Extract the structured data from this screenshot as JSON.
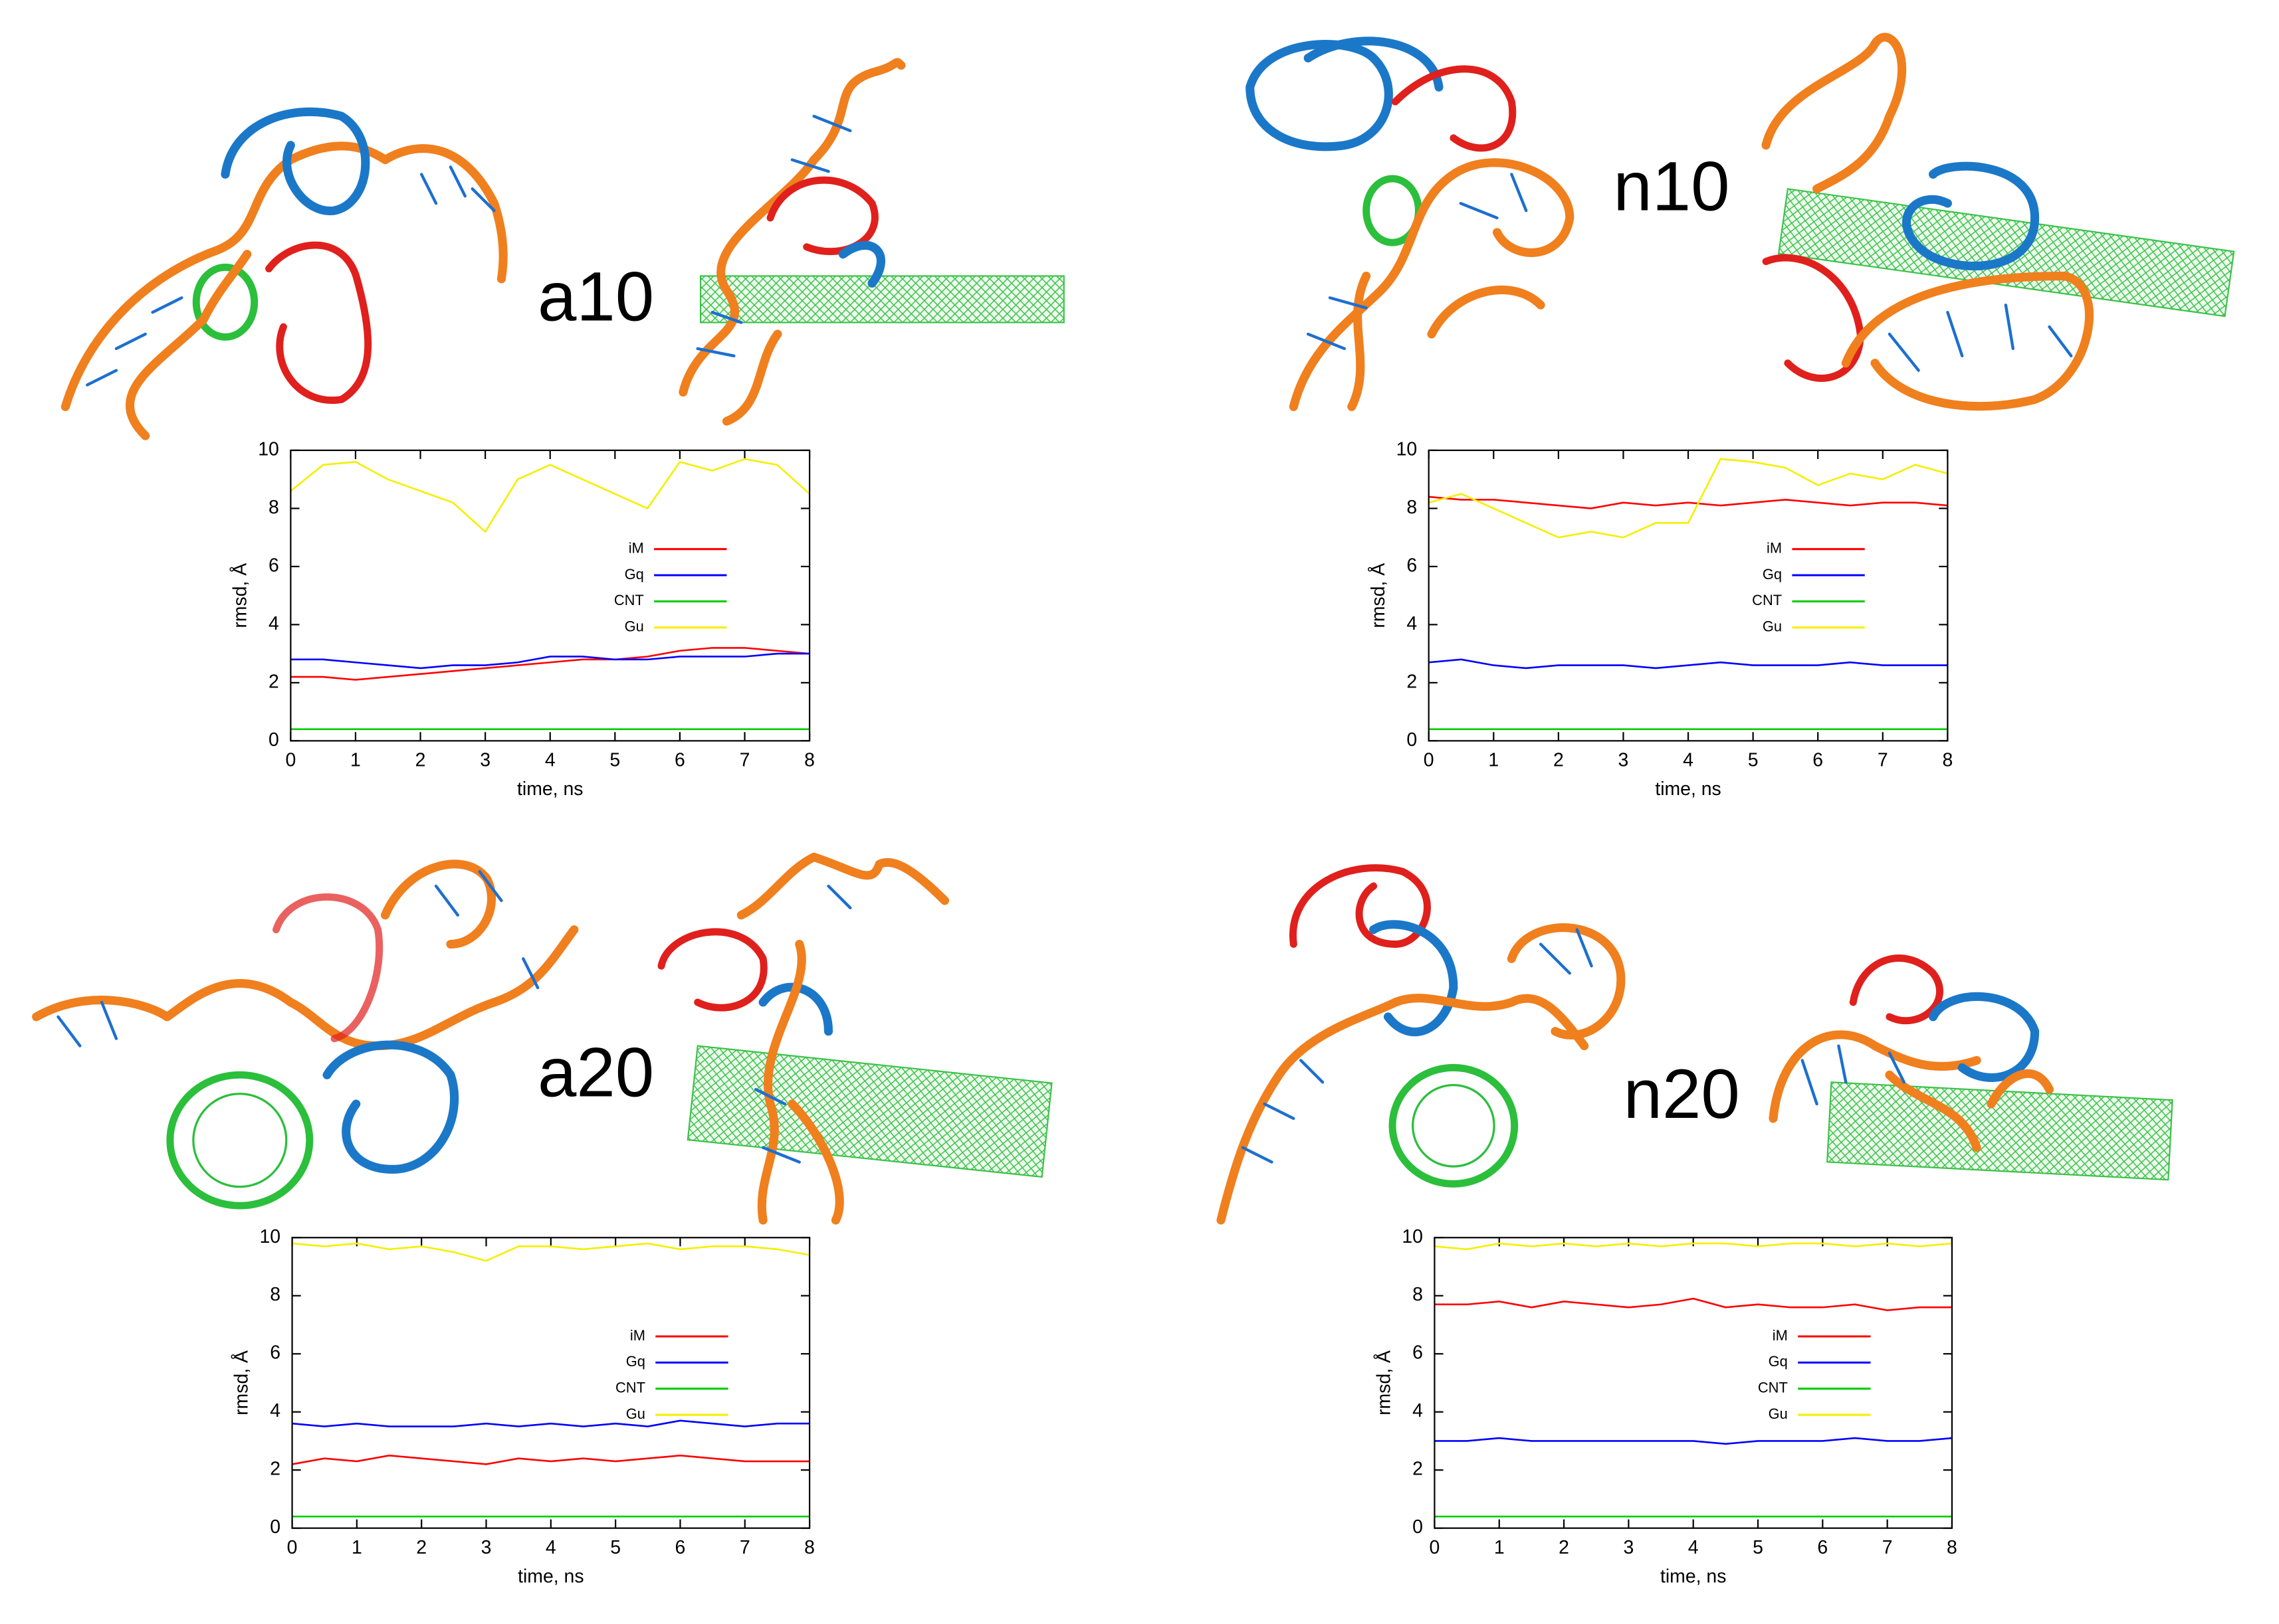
{
  "chart_data": [
    {
      "type": "line",
      "label": "a10",
      "xlabel": "time, ns",
      "ylabel": "rmsd, Å",
      "xlim": [
        0,
        8
      ],
      "ylim": [
        0,
        10
      ],
      "xticks": [
        0,
        1,
        2,
        3,
        4,
        5,
        6,
        7,
        8
      ],
      "yticks": [
        0,
        2,
        4,
        6,
        8,
        10
      ],
      "x": [
        0,
        0.5,
        1,
        1.5,
        2,
        2.5,
        3,
        3.5,
        4,
        4.5,
        5,
        5.5,
        6,
        6.5,
        7,
        7.5,
        8
      ],
      "series": [
        {
          "name": "iM",
          "color": "#ff0000",
          "values": [
            2.2,
            2.2,
            2.1,
            2.2,
            2.3,
            2.4,
            2.5,
            2.6,
            2.7,
            2.8,
            2.8,
            2.9,
            3.1,
            3.2,
            3.2,
            3.1,
            3.0
          ]
        },
        {
          "name": "Gq",
          "color": "#0000ff",
          "values": [
            2.8,
            2.8,
            2.7,
            2.6,
            2.5,
            2.6,
            2.6,
            2.7,
            2.9,
            2.9,
            2.8,
            2.8,
            2.9,
            2.9,
            2.9,
            3.0,
            3.0
          ]
        },
        {
          "name": "CNT",
          "color": "#00cc00",
          "values": [
            0.4,
            0.4,
            0.4,
            0.4,
            0.4,
            0.4,
            0.4,
            0.4,
            0.4,
            0.4,
            0.4,
            0.4,
            0.4,
            0.4,
            0.4,
            0.4,
            0.4
          ]
        },
        {
          "name": "Gu",
          "color": "#f5ef00",
          "values": [
            8.6,
            9.5,
            9.6,
            9.0,
            8.6,
            8.2,
            7.2,
            9.0,
            9.5,
            9.0,
            8.5,
            8.0,
            9.6,
            9.3,
            9.7,
            9.5,
            8.5
          ]
        }
      ]
    },
    {
      "type": "line",
      "label": "n10",
      "xlabel": "time, ns",
      "ylabel": "rmsd, Å",
      "xlim": [
        0,
        8
      ],
      "ylim": [
        0,
        10
      ],
      "xticks": [
        0,
        1,
        2,
        3,
        4,
        5,
        6,
        7,
        8
      ],
      "yticks": [
        0,
        2,
        4,
        6,
        8,
        10
      ],
      "x": [
        0,
        0.5,
        1,
        1.5,
        2,
        2.5,
        3,
        3.5,
        4,
        4.5,
        5,
        5.5,
        6,
        6.5,
        7,
        7.5,
        8
      ],
      "series": [
        {
          "name": "iM",
          "color": "#ff0000",
          "values": [
            8.4,
            8.3,
            8.3,
            8.2,
            8.1,
            8.0,
            8.2,
            8.1,
            8.2,
            8.1,
            8.2,
            8.3,
            8.2,
            8.1,
            8.2,
            8.2,
            8.1
          ]
        },
        {
          "name": "Gq",
          "color": "#0000ff",
          "values": [
            2.7,
            2.8,
            2.6,
            2.5,
            2.6,
            2.6,
            2.6,
            2.5,
            2.6,
            2.7,
            2.6,
            2.6,
            2.6,
            2.7,
            2.6,
            2.6,
            2.6
          ]
        },
        {
          "name": "CNT",
          "color": "#00cc00",
          "values": [
            0.4,
            0.4,
            0.4,
            0.4,
            0.4,
            0.4,
            0.4,
            0.4,
            0.4,
            0.4,
            0.4,
            0.4,
            0.4,
            0.4,
            0.4,
            0.4,
            0.4
          ]
        },
        {
          "name": "Gu",
          "color": "#f5ef00",
          "values": [
            8.2,
            8.5,
            8.0,
            7.5,
            7.0,
            7.2,
            7.0,
            7.5,
            7.5,
            9.7,
            9.6,
            9.4,
            8.8,
            9.2,
            9.0,
            9.5,
            9.2
          ]
        }
      ]
    },
    {
      "type": "line",
      "label": "a20",
      "xlabel": "time, ns",
      "ylabel": "rmsd, Å",
      "xlim": [
        0,
        8
      ],
      "ylim": [
        0,
        10
      ],
      "xticks": [
        0,
        1,
        2,
        3,
        4,
        5,
        6,
        7,
        8
      ],
      "yticks": [
        0,
        2,
        4,
        6,
        8,
        10
      ],
      "x": [
        0,
        0.5,
        1,
        1.5,
        2,
        2.5,
        3,
        3.5,
        4,
        4.5,
        5,
        5.5,
        6,
        6.5,
        7,
        7.5,
        8
      ],
      "series": [
        {
          "name": "iM",
          "color": "#ff0000",
          "values": [
            2.2,
            2.4,
            2.3,
            2.5,
            2.4,
            2.3,
            2.2,
            2.4,
            2.3,
            2.4,
            2.3,
            2.4,
            2.5,
            2.4,
            2.3,
            2.3,
            2.3
          ]
        },
        {
          "name": "Gq",
          "color": "#0000ff",
          "values": [
            3.6,
            3.5,
            3.6,
            3.5,
            3.5,
            3.5,
            3.6,
            3.5,
            3.6,
            3.5,
            3.6,
            3.5,
            3.7,
            3.6,
            3.5,
            3.6,
            3.6
          ]
        },
        {
          "name": "CNT",
          "color": "#00cc00",
          "values": [
            0.4,
            0.4,
            0.4,
            0.4,
            0.4,
            0.4,
            0.4,
            0.4,
            0.4,
            0.4,
            0.4,
            0.4,
            0.4,
            0.4,
            0.4,
            0.4,
            0.4
          ]
        },
        {
          "name": "Gu",
          "color": "#f5ef00",
          "values": [
            9.8,
            9.7,
            9.8,
            9.6,
            9.7,
            9.5,
            9.2,
            9.7,
            9.7,
            9.6,
            9.7,
            9.8,
            9.6,
            9.7,
            9.7,
            9.6,
            9.4
          ]
        }
      ]
    },
    {
      "type": "line",
      "label": "n20",
      "xlabel": "time, ns",
      "ylabel": "rmsd, Å",
      "xlim": [
        0,
        8
      ],
      "ylim": [
        0,
        10
      ],
      "xticks": [
        0,
        1,
        2,
        3,
        4,
        5,
        6,
        7,
        8
      ],
      "yticks": [
        0,
        2,
        4,
        6,
        8,
        10
      ],
      "x": [
        0,
        0.5,
        1,
        1.5,
        2,
        2.5,
        3,
        3.5,
        4,
        4.5,
        5,
        5.5,
        6,
        6.5,
        7,
        7.5,
        8
      ],
      "series": [
        {
          "name": "iM",
          "color": "#ff0000",
          "values": [
            7.7,
            7.7,
            7.8,
            7.6,
            7.8,
            7.7,
            7.6,
            7.7,
            7.9,
            7.6,
            7.7,
            7.6,
            7.6,
            7.7,
            7.5,
            7.6,
            7.6
          ]
        },
        {
          "name": "Gq",
          "color": "#0000ff",
          "values": [
            3.0,
            3.0,
            3.1,
            3.0,
            3.0,
            3.0,
            3.0,
            3.0,
            3.0,
            2.9,
            3.0,
            3.0,
            3.0,
            3.1,
            3.0,
            3.0,
            3.1
          ]
        },
        {
          "name": "CNT",
          "color": "#00cc00",
          "values": [
            0.4,
            0.4,
            0.4,
            0.4,
            0.4,
            0.4,
            0.4,
            0.4,
            0.4,
            0.4,
            0.4,
            0.4,
            0.4,
            0.4,
            0.4,
            0.4,
            0.4
          ]
        },
        {
          "name": "Gu",
          "color": "#f5ef00",
          "values": [
            9.7,
            9.6,
            9.8,
            9.7,
            9.8,
            9.7,
            9.8,
            9.7,
            9.8,
            9.8,
            9.7,
            9.8,
            9.8,
            9.7,
            9.8,
            9.7,
            9.8
          ]
        }
      ]
    }
  ]
}
